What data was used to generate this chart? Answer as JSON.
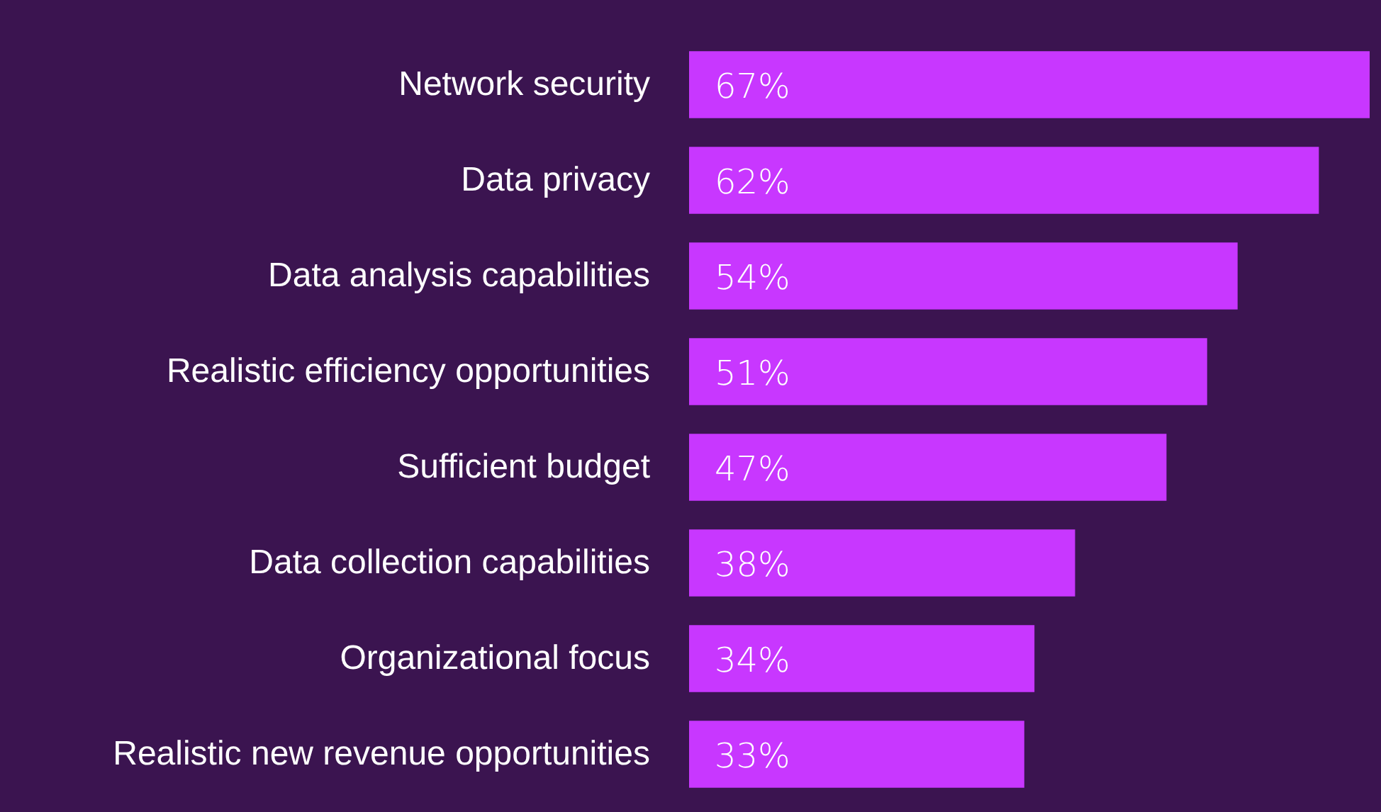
{
  "chart_data": {
    "type": "bar",
    "orientation": "horizontal",
    "categories": [
      "Network security",
      "Data privacy",
      "Data analysis capabilities",
      "Realistic efficiency opportunities",
      "Sufficient budget",
      "Data collection capabilities",
      "Organizational focus",
      "Realistic new revenue opportunities"
    ],
    "values": [
      67,
      62,
      54,
      51,
      47,
      38,
      34,
      33
    ],
    "value_labels": [
      "67%",
      "62%",
      "54%",
      "51%",
      "47%",
      "38%",
      "34%",
      "33%"
    ],
    "color": "#c837ff"
  }
}
